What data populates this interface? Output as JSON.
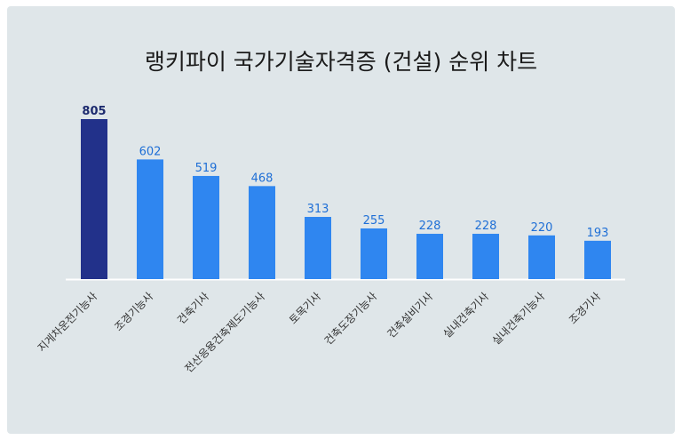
{
  "chart_data": {
    "type": "bar",
    "title": "랭키파이 국가기술자격증 (건설) 순위 차트",
    "categories": [
      "지게차운전기능사",
      "조경기능사",
      "건축기사",
      "전산응용건축제도기능사",
      "토목기사",
      "건축도장기능사",
      "건축설비기사",
      "실내건축기사",
      "실내건축기능사",
      "조경기사"
    ],
    "values": [
      805,
      602,
      519,
      468,
      313,
      255,
      228,
      228,
      220,
      193
    ],
    "xlabel": "",
    "ylabel": "",
    "ylim": [
      0,
      805
    ],
    "grid": false,
    "legend": "none",
    "colors": {
      "highlight": "#22318a",
      "bar": "#2f86f0",
      "highlight_label": "#1c2a6e",
      "label": "#1f6fd6",
      "baseline": "#ffffff"
    }
  }
}
